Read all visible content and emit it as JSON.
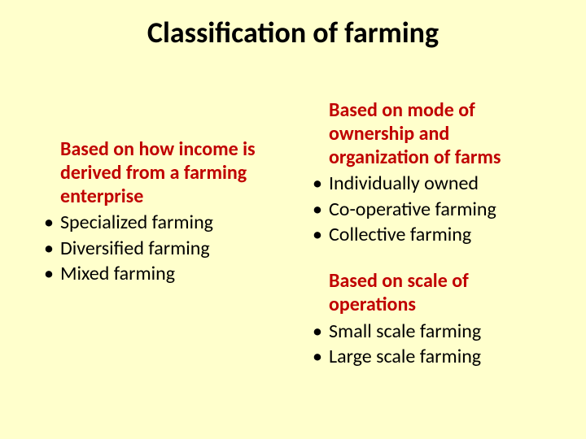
{
  "slide": {
    "background_color": "#ffffcc",
    "title_color": "#000000",
    "heading_color": "#c00000",
    "body_color": "#000000",
    "title_fontsize": 36,
    "heading_fontsize": 24,
    "body_fontsize": 24,
    "title": "Classification of farming",
    "left": {
      "heading": "Based on how income is derived from a farming enterprise",
      "items": [
        "Specialized farming",
        "Diversified farming",
        "Mixed farming"
      ]
    },
    "right": {
      "sections": [
        {
          "heading": "Based on mode  of ownership and organization of farms",
          "items": [
            "Individually owned",
            "Co-operative farming",
            "Collective farming"
          ]
        },
        {
          "heading": "Based on scale of operations",
          "items": [
            "Small scale farming",
            "Large scale farming"
          ]
        }
      ]
    }
  }
}
